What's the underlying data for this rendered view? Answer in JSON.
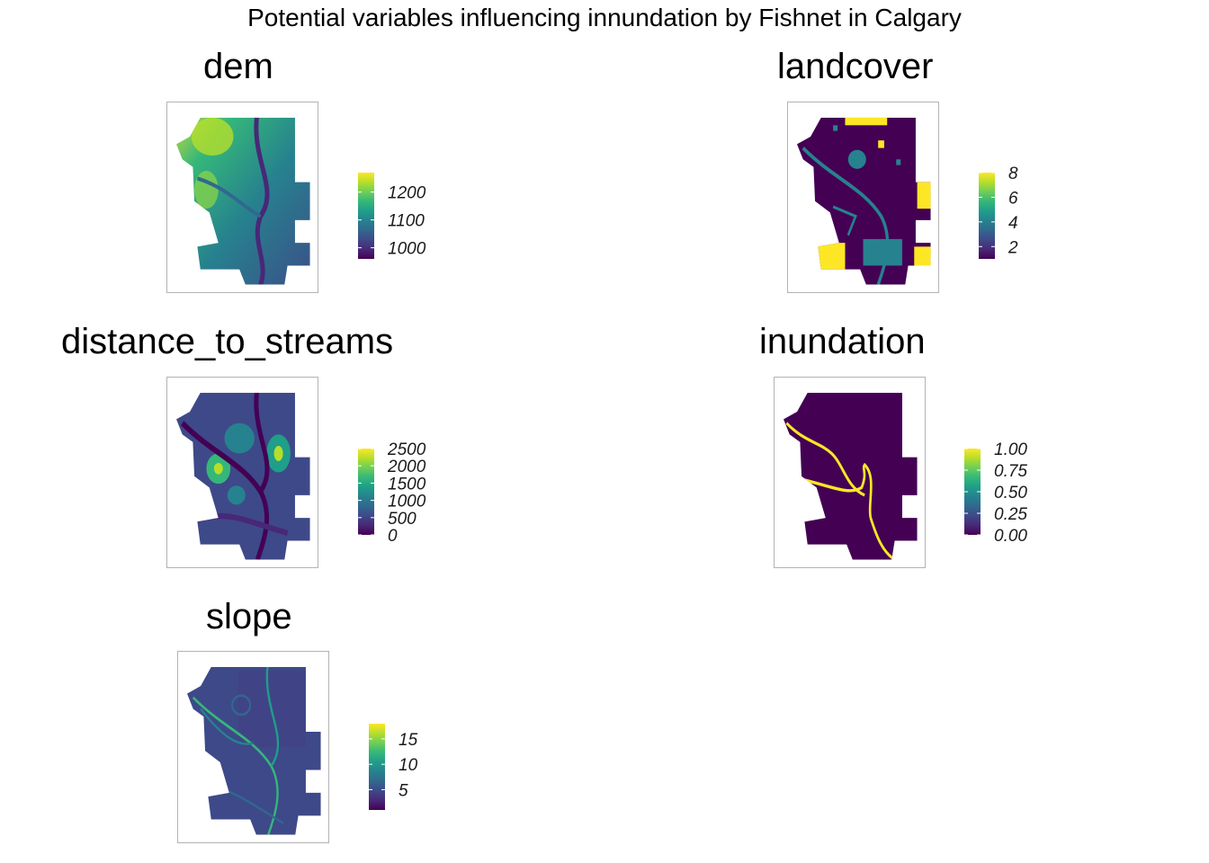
{
  "title": "Potential variables influencing innundation by Fishnet in Calgary",
  "palette": [
    "#440154",
    "#482878",
    "#3e4989",
    "#31688e",
    "#26828e",
    "#1f9e89",
    "#35b779",
    "#6ece58",
    "#b5de2b",
    "#fde725"
  ],
  "chart_data": [
    {
      "type": "heatmap",
      "title": "dem",
      "legend": {
        "min": 960,
        "max": 1270,
        "ticks": [
          1000,
          1100,
          1200
        ],
        "tick_labels": [
          "1000",
          "1100",
          "1200"
        ]
      }
    },
    {
      "type": "heatmap",
      "title": "landcover",
      "legend": {
        "min": 1,
        "max": 8,
        "ticks": [
          2,
          4,
          6,
          8
        ],
        "tick_labels": [
          "2",
          "4",
          "6",
          "8"
        ]
      }
    },
    {
      "type": "heatmap",
      "title": "distance_to_streams",
      "legend": {
        "min": 0,
        "max": 2500,
        "ticks": [
          0,
          500,
          1000,
          1500,
          2000,
          2500
        ],
        "tick_labels": [
          "0",
          "500",
          "1000",
          "1500",
          "2000",
          "2500"
        ]
      }
    },
    {
      "type": "heatmap",
      "title": "inundation",
      "legend": {
        "min": 0,
        "max": 1,
        "ticks": [
          0,
          0.25,
          0.5,
          0.75,
          1
        ],
        "tick_labels": [
          "0.00",
          "0.25",
          "0.50",
          "0.75",
          "1.00"
        ]
      }
    },
    {
      "type": "heatmap",
      "title": "slope",
      "legend": {
        "min": 1,
        "max": 18,
        "ticks": [
          5,
          10,
          15
        ],
        "tick_labels": [
          "5",
          "10",
          "15"
        ]
      }
    }
  ]
}
